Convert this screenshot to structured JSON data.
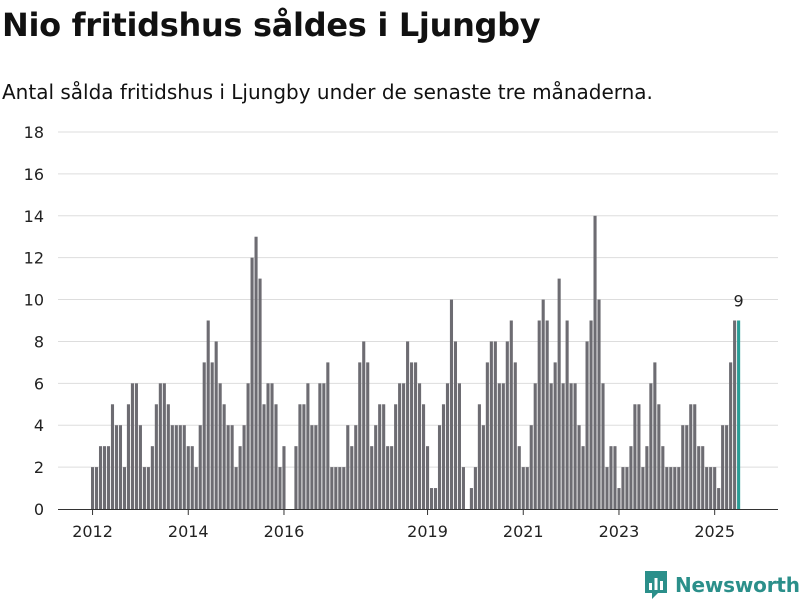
{
  "title": "Nio fritidshus såldes i Ljungby",
  "subtitle": "Antal sålda fritidshus i Ljungby under de senaste tre månaderna.",
  "brand": {
    "name": "Newsworthy"
  },
  "colors": {
    "bar": "#6d6c72",
    "highlight": "#2a9d96",
    "grid": "#dddddd",
    "axis": "#333333",
    "text": "#222222"
  },
  "chart_data": {
    "type": "bar",
    "x_start": "2012-01",
    "x_tick_labels": [
      "2012",
      "2014",
      "2016",
      "2019",
      "2021",
      "2023",
      "2025"
    ],
    "x_tick_months": [
      "2012-01",
      "2014-01",
      "2016-01",
      "2019-01",
      "2021-01",
      "2023-01",
      "2025-01"
    ],
    "ylim": [
      0,
      18
    ],
    "y_ticks": [
      0,
      2,
      4,
      6,
      8,
      10,
      12,
      14,
      16,
      18
    ],
    "grid": true,
    "values": [
      2,
      2,
      3,
      3,
      3,
      5,
      4,
      4,
      2,
      5,
      6,
      6,
      4,
      2,
      2,
      3,
      5,
      6,
      6,
      5,
      4,
      4,
      4,
      4,
      3,
      3,
      2,
      4,
      7,
      9,
      7,
      8,
      6,
      5,
      4,
      4,
      2,
      3,
      4,
      6,
      12,
      13,
      11,
      5,
      6,
      6,
      5,
      2,
      3,
      0,
      0,
      3,
      5,
      5,
      6,
      4,
      4,
      6,
      6,
      7,
      2,
      2,
      2,
      2,
      4,
      3,
      4,
      7,
      8,
      7,
      3,
      4,
      5,
      5,
      3,
      3,
      5,
      6,
      6,
      8,
      7,
      7,
      6,
      5,
      3,
      1,
      1,
      4,
      5,
      6,
      10,
      8,
      6,
      2,
      0,
      1,
      2,
      5,
      4,
      7,
      8,
      8,
      6,
      6,
      8,
      9,
      7,
      3,
      2,
      2,
      4,
      6,
      9,
      10,
      9,
      6,
      7,
      11,
      6,
      9,
      6,
      6,
      4,
      3,
      8,
      9,
      14,
      10,
      6,
      2,
      3,
      3,
      1,
      2,
      2,
      3,
      5,
      5,
      2,
      3,
      6,
      7,
      5,
      3,
      2,
      2,
      2,
      2,
      4,
      4,
      5,
      5,
      3,
      3,
      2,
      2,
      2,
      1,
      4,
      4,
      7,
      9,
      9
    ],
    "highlight_label": "9"
  }
}
